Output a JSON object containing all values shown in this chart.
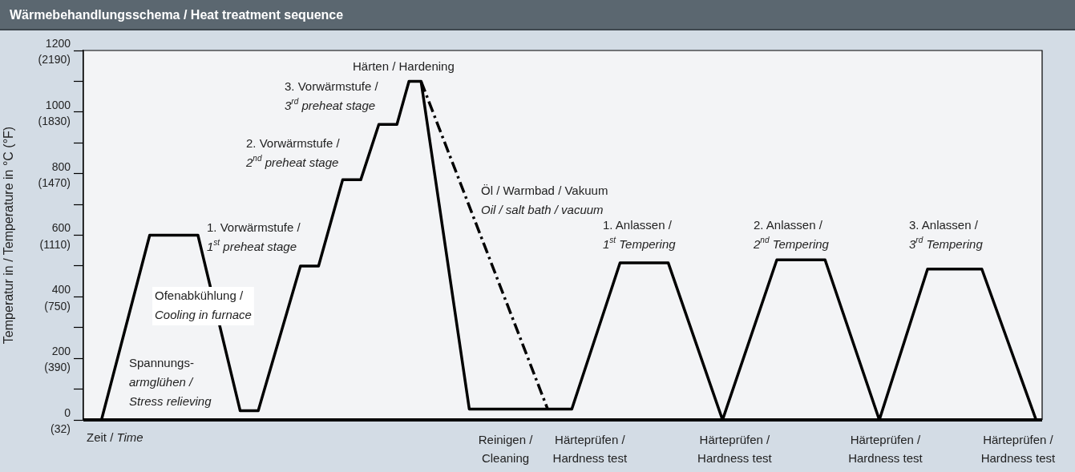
{
  "chart_data": {
    "type": "line",
    "title": "Wärmebehandlungsschema / Heat treatment sequence",
    "xlabel": "Zeit / Time",
    "y2label": "Temperatur in / Temperature in °C (°F)",
    "marker": "none",
    "categories": [
      null,
      null,
      null,
      null,
      null,
      null,
      null,
      null,
      null,
      null,
      null,
      null,
      null,
      null,
      null,
      null,
      null,
      null,
      null,
      null,
      null,
      null,
      null,
      null,
      null,
      null,
      null,
      null,
      null,
      null,
      null,
      null,
      null,
      null,
      null,
      null,
      null,
      null,
      null,
      null,
      null,
      null,
      null,
      null,
      null,
      null,
      null,
      null,
      null,
      null,
      null,
      null,
      null,
      null,
      null,
      null,
      null,
      null,
      null,
      null,
      null,
      null,
      null,
      null,
      null,
      null,
      null,
      null,
      null,
      null,
      "Reinigen / Cleaning",
      null,
      null,
      null,
      null,
      null,
      null,
      null,
      null,
      null,
      null,
      null,
      null,
      null,
      "Härteprüfen / Hardness test",
      null,
      null,
      null,
      null,
      null,
      null,
      null,
      null,
      null,
      null,
      null,
      null,
      null,
      null,
      null,
      null,
      null,
      null,
      null,
      null,
      null,
      null,
      null,
      "Härteprüfen / Hardness test",
      null,
      null,
      null,
      null,
      null,
      null,
      null,
      null,
      null,
      null,
      null,
      null,
      null,
      null,
      null,
      null,
      null,
      null,
      null,
      null,
      null,
      null,
      null,
      null,
      "Härteprüfen / Hardness test",
      null,
      null,
      null,
      null,
      null,
      null,
      null,
      null,
      null,
      null,
      null,
      null,
      null,
      null,
      null,
      null,
      null,
      null,
      null,
      null,
      null,
      "Härteprüfen / Hardness test",
      null,
      null,
      null,
      null
    ],
    "series": [
      {
        "type": "line",
        "color": "#000000",
        "line_style": "solid",
        "values": [
          null,
          null,
          null,
          0,
          null,
          null,
          null,
          null,
          null,
          null,
          null,
          600,
          null,
          null,
          null,
          null,
          null,
          null,
          null,
          600,
          null,
          null,
          null,
          null,
          null,
          null,
          30,
          null,
          null,
          30,
          null,
          null,
          null,
          null,
          null,
          null,
          500,
          null,
          null,
          500,
          null,
          null,
          null,
          780,
          null,
          null,
          780,
          null,
          null,
          960,
          null,
          null,
          960,
          null,
          1100,
          null,
          1100,
          null,
          null,
          null,
          null,
          null,
          null,
          null,
          35,
          null,
          null,
          null,
          null,
          null,
          null,
          null,
          null,
          null,
          null,
          null,
          null,
          null,
          null,
          null,
          null,
          35,
          null,
          null,
          null,
          null,
          null,
          null,
          null,
          510,
          null,
          null,
          null,
          null,
          null,
          null,
          null,
          510,
          null,
          null,
          null,
          null,
          null,
          null,
          null,
          null,
          0,
          null,
          null,
          null,
          null,
          null,
          null,
          null,
          null,
          520,
          null,
          null,
          null,
          null,
          null,
          null,
          null,
          520,
          null,
          null,
          null,
          null,
          null,
          null,
          null,
          null,
          0,
          null,
          null,
          null,
          null,
          null,
          null,
          null,
          490,
          null,
          null,
          null,
          null,
          null,
          null,
          null,
          null,
          490,
          null,
          null,
          null,
          null,
          null,
          null,
          null,
          null,
          0,
          null
        ]
      },
      {
        "type": "line",
        "color": "#000000",
        "line_style": "dashed",
        "values": [
          null,
          null,
          null,
          null,
          null,
          null,
          null,
          null,
          null,
          null,
          null,
          null,
          null,
          null,
          null,
          null,
          null,
          null,
          null,
          null,
          null,
          null,
          null,
          null,
          null,
          null,
          null,
          null,
          null,
          null,
          null,
          null,
          null,
          null,
          null,
          null,
          null,
          null,
          null,
          null,
          null,
          null,
          null,
          null,
          null,
          null,
          null,
          null,
          null,
          null,
          null,
          null,
          null,
          null,
          null,
          null,
          1100,
          null,
          null,
          null,
          null,
          null,
          null,
          null,
          null,
          null,
          null,
          null,
          null,
          null,
          null,
          null,
          null,
          null,
          null,
          null,
          null,
          35,
          null,
          null,
          null,
          null,
          null,
          null,
          null,
          null,
          null,
          null,
          null,
          null,
          null,
          null,
          null,
          null,
          null,
          null,
          null,
          null,
          null,
          null,
          null,
          null,
          null,
          null,
          null,
          null,
          null,
          null,
          null,
          null,
          null,
          null,
          null,
          null,
          null,
          null,
          null,
          null,
          null,
          null,
          null,
          null,
          null,
          null,
          null,
          null,
          null,
          null,
          null,
          null,
          null,
          null,
          null,
          null,
          null,
          null,
          null,
          null,
          null,
          null,
          null,
          null,
          null,
          null,
          null,
          null,
          null,
          null,
          null,
          null,
          null,
          null,
          null,
          null,
          null,
          null,
          null,
          null,
          null,
          null
        ]
      }
    ],
    "ylim": [
      0,
      1200
    ],
    "yticks": [
      0,
      {
        "value": 100,
        "label": null
      },
      200,
      {
        "value": 300,
        "label": null
      },
      400,
      {
        "value": 500,
        "label": null
      },
      600,
      {
        "value": 700,
        "label": null
      },
      800,
      {
        "value": 900,
        "label": null
      },
      1000,
      {
        "value": 1100,
        "label": null
      },
      1200
    ],
    "y2lim": [
      32,
      2192
    ],
    "y2ticks": [
      {
        "value": 32,
        "label": "(32)"
      },
      {
        "value": 390,
        "label": "(390)"
      },
      {
        "value": 750,
        "label": "(750)"
      },
      {
        "value": 1110,
        "label": "(1110)"
      },
      {
        "value": 1470,
        "label": "(1470)"
      },
      {
        "value": 1830,
        "label": "(1830)"
      },
      {
        "value": 2190,
        "label": "(2190)"
      }
    ],
    "annotations": [
      "Härten / Hardening",
      "3. Vorwärmstufe /\n3$^{rd}$ preheat stage",
      "2. Vorwärmstufe /\n2$^{nd}$ preheat stage",
      "1. Vorwärmstufe /\n1$^{st}$ preheat stage",
      "Ofenabkühlung /\nCooling in furnace",
      "Spannungs-\narmglühen /\nStress relieving",
      "Öl / Warmbad / Vakuum\nOil / salt bath / vacuum",
      "1. Anlassen /\n1$^{st}$ Tempering",
      "2. Anlassen /\n2$^{nd}$ Tempering",
      "3. Anlassen /\n3$^{rd}$ Tempering"
    ]
  }
}
